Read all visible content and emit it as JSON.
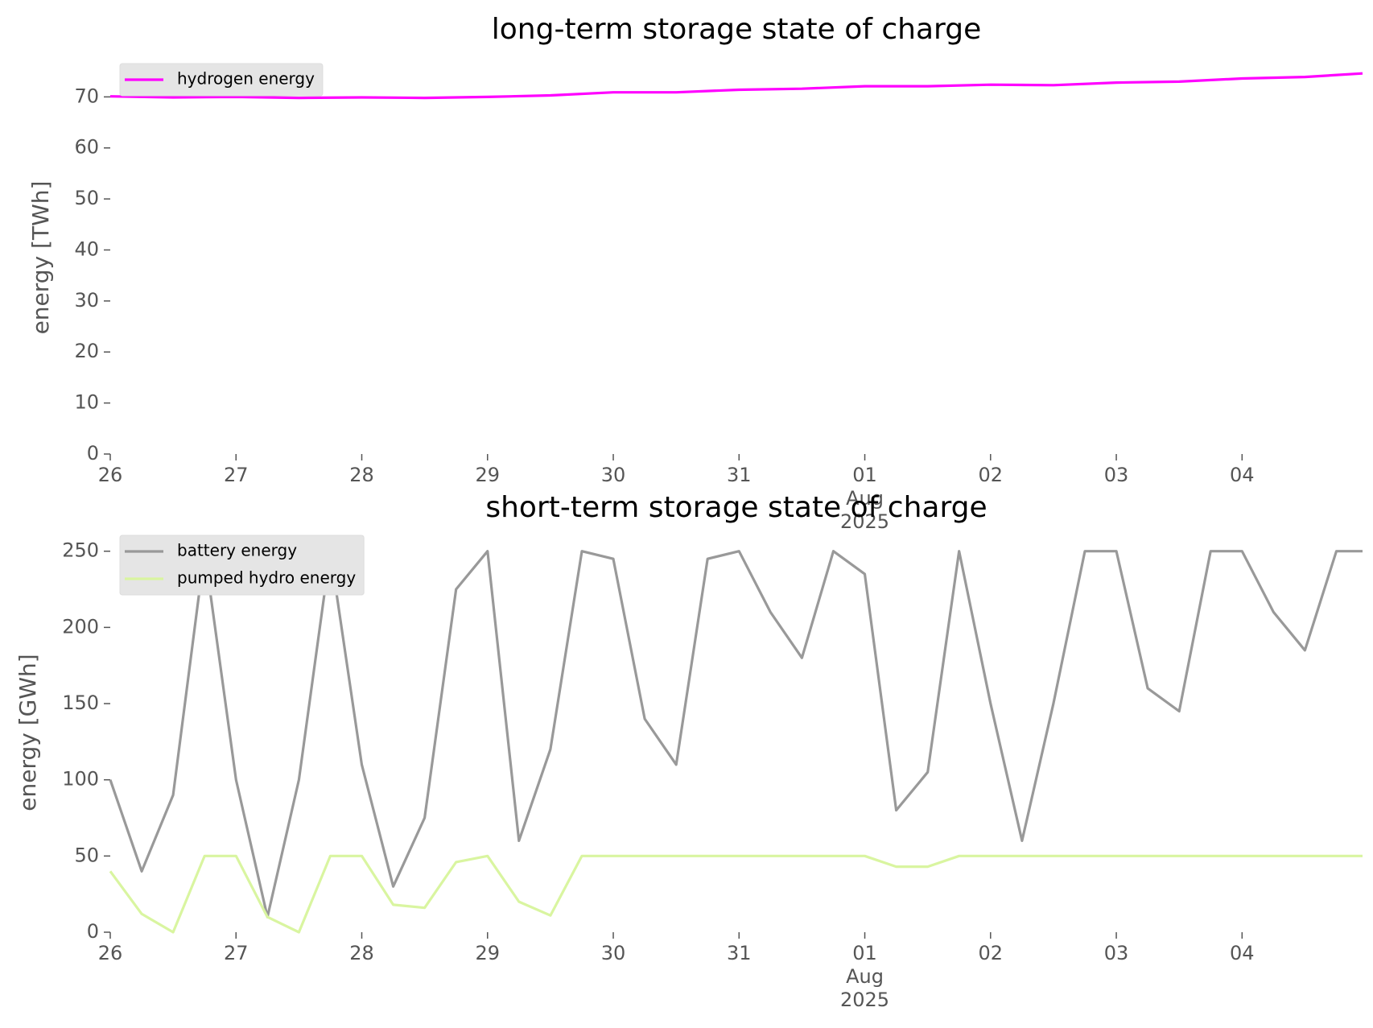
{
  "chart_data": [
    {
      "type": "line",
      "title": "long-term storage state of charge",
      "ylabel": "energy [TWh]",
      "x": [
        0,
        0.5,
        1,
        1.5,
        2,
        2.5,
        3,
        3.5,
        4,
        4.5,
        5,
        5.5,
        6,
        6.5,
        7,
        7.5,
        8,
        8.5,
        9,
        9.5,
        9.958
      ],
      "series": [
        {
          "name": "hydrogen energy",
          "color": "#ff00ff",
          "values": [
            70.1,
            69.9,
            70.0,
            69.8,
            69.9,
            69.8,
            70.0,
            70.3,
            70.9,
            70.9,
            71.4,
            71.6,
            72.1,
            72.1,
            72.4,
            72.3,
            72.8,
            73.0,
            73.6,
            73.9,
            74.6
          ]
        }
      ],
      "xlim": [
        0,
        9.958
      ],
      "ylim": [
        0,
        77
      ],
      "xticks": [
        {
          "value": 0,
          "label": "26"
        },
        {
          "value": 1,
          "label": "27"
        },
        {
          "value": 2,
          "label": "28"
        },
        {
          "value": 3,
          "label": "29"
        },
        {
          "value": 4,
          "label": "30"
        },
        {
          "value": 5,
          "label": "31"
        },
        {
          "value": 6,
          "label": "01"
        },
        {
          "value": 7,
          "label": "02"
        },
        {
          "value": 8,
          "label": "03"
        },
        {
          "value": 9,
          "label": "04"
        }
      ],
      "x_month_year": [
        "Aug",
        "2025"
      ],
      "yticks": [
        0,
        10,
        20,
        30,
        40,
        50,
        60,
        70
      ],
      "legend": "upper left"
    },
    {
      "type": "line",
      "title": "short-term storage state of charge",
      "ylabel": "energy [GWh]",
      "x": [
        0,
        0.25,
        0.5,
        0.75,
        1,
        1.25,
        1.5,
        1.75,
        2,
        2.25,
        2.5,
        2.75,
        3,
        3.25,
        3.5,
        3.75,
        4,
        4.25,
        4.5,
        4.75,
        5,
        5.25,
        5.5,
        5.75,
        6,
        6.25,
        6.5,
        6.75,
        7,
        7.25,
        7.5,
        7.75,
        8,
        8.25,
        8.5,
        8.75,
        9,
        9.25,
        9.5,
        9.75,
        9.958
      ],
      "series": [
        {
          "name": "battery energy",
          "color": "#999999",
          "values": [
            100,
            40,
            90,
            250,
            100,
            10,
            100,
            250,
            110,
            30,
            75,
            225,
            250,
            60,
            120,
            250,
            245,
            140,
            110,
            245,
            250,
            210,
            180,
            250,
            235,
            80,
            105,
            250,
            150,
            60,
            150,
            250,
            250,
            160,
            145,
            250,
            250,
            210,
            185,
            250,
            250
          ]
        },
        {
          "name": "pumped hydro energy",
          "color": "#d9f5a0",
          "values": [
            40,
            12,
            0,
            50,
            50,
            10,
            0,
            50,
            50,
            18,
            16,
            46,
            50,
            20,
            11,
            50,
            50,
            50,
            50,
            50,
            50,
            50,
            50,
            50,
            50,
            43,
            43,
            50,
            50,
            50,
            50,
            50,
            50,
            50,
            50,
            50,
            50,
            50,
            50,
            50,
            50
          ]
        }
      ],
      "xlim": [
        0,
        9.958
      ],
      "ylim": [
        0,
        262
      ],
      "xticks": [
        {
          "value": 0,
          "label": "26"
        },
        {
          "value": 1,
          "label": "27"
        },
        {
          "value": 2,
          "label": "28"
        },
        {
          "value": 3,
          "label": "29"
        },
        {
          "value": 4,
          "label": "30"
        },
        {
          "value": 5,
          "label": "31"
        },
        {
          "value": 6,
          "label": "01"
        },
        {
          "value": 7,
          "label": "02"
        },
        {
          "value": 8,
          "label": "03"
        },
        {
          "value": 9,
          "label": "04"
        }
      ],
      "x_month_year": [
        "Aug",
        "2025"
      ],
      "yticks": [
        0,
        50,
        100,
        150,
        200,
        250
      ],
      "legend": "upper left"
    }
  ]
}
